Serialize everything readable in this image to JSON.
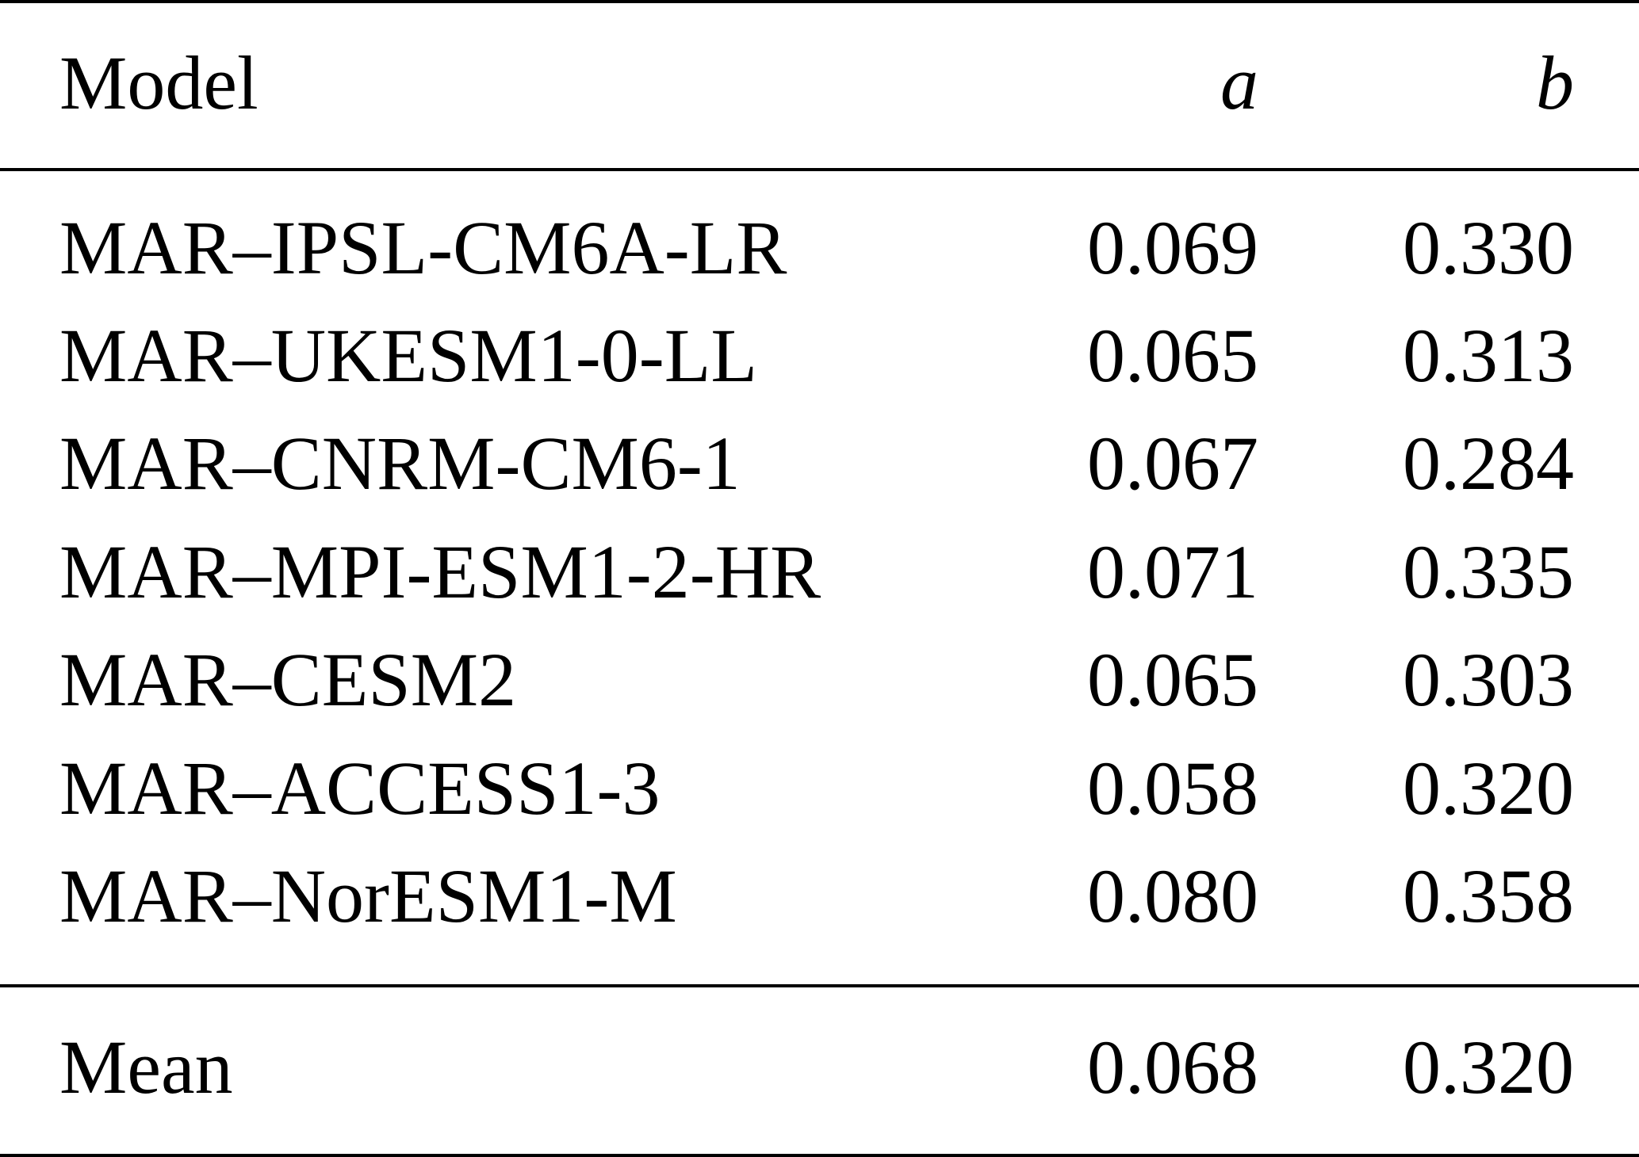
{
  "table": {
    "headers": {
      "model": "Model",
      "a": "a",
      "b": "b"
    },
    "rows": [
      {
        "model": "MAR–IPSL-CM6A-LR",
        "a": "0.069",
        "b": "0.330"
      },
      {
        "model": "MAR–UKESM1-0-LL",
        "a": "0.065",
        "b": "0.313"
      },
      {
        "model": "MAR–CNRM-CM6-1",
        "a": "0.067",
        "b": "0.284"
      },
      {
        "model": "MAR–MPI-ESM1-2-HR",
        "a": "0.071",
        "b": "0.335"
      },
      {
        "model": "MAR–CESM2",
        "a": "0.065",
        "b": "0.303"
      },
      {
        "model": "MAR–ACCESS1-3",
        "a": "0.058",
        "b": "0.320"
      },
      {
        "model": "MAR–NorESM1-M",
        "a": "0.080",
        "b": "0.358"
      }
    ],
    "summary": {
      "model": "Mean",
      "a": "0.068",
      "b": "0.320"
    }
  }
}
